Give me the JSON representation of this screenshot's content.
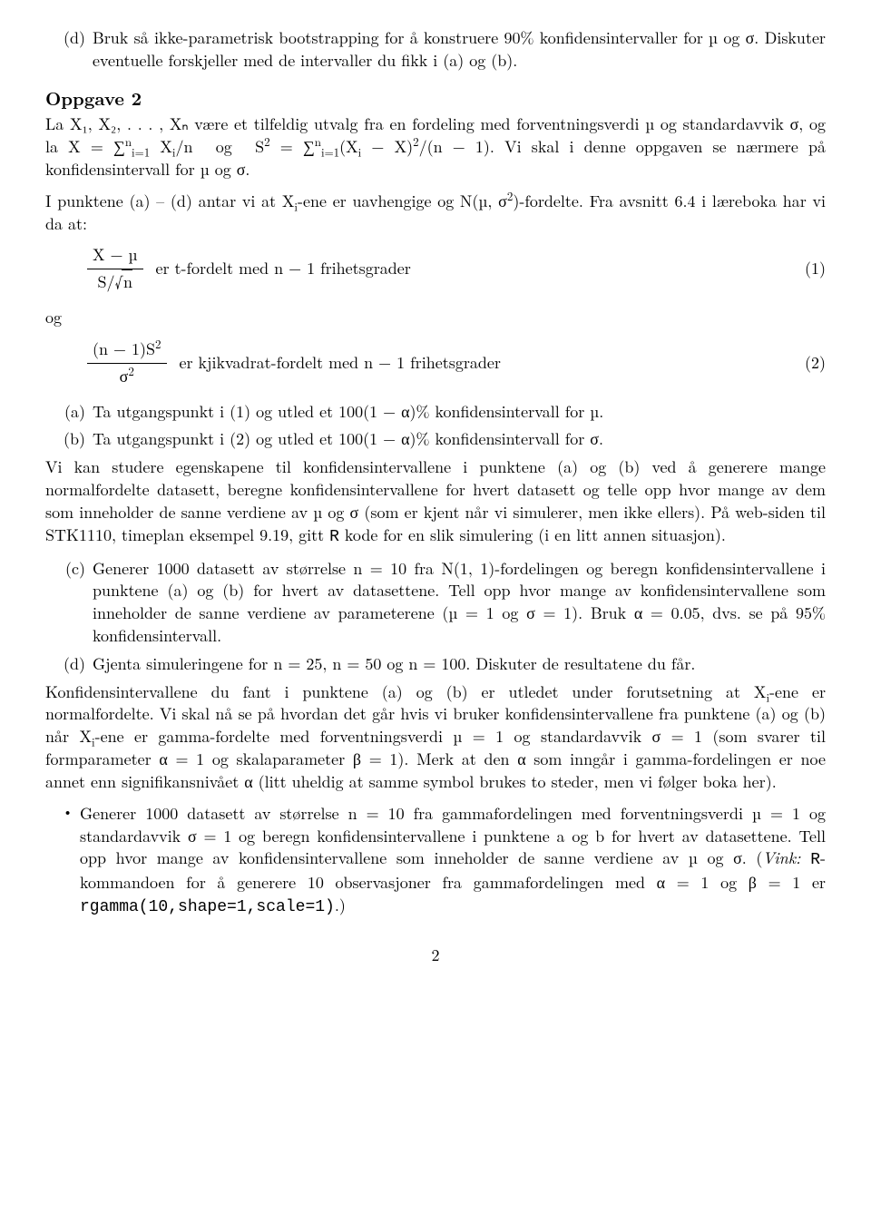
{
  "item_d": {
    "label": "(d)",
    "text": "Bruk så ikke-parametrisk bootstrapping for å konstruere 90% konfidensintervaller for µ og σ. Diskuter eventuelle forskjeller med de intervaller du fikk i (a) og (b)."
  },
  "oppgave2": {
    "heading": "Oppgave 2",
    "para1_before": "La X₁, X₂, . . . , Xₙ være et tilfeldig utvalg fra en fordeling med forventningsverdi µ og standardavvik σ, og la ",
    "para1_eq": "X̄ = ∑ⁿᵢ₌₁ Xᵢ/n og S² = ∑ⁿᵢ₌₁ (Xᵢ − X̄)²/(n − 1).",
    "para1_after": " Vi skal i denne oppgaven se nærmere på konfidensintervall for µ og σ.",
    "para2": "I punktene (a) – (d) antar vi at Xᵢ-ene er uavhengige og N(µ, σ²)-fordelte. Fra avsnitt 6.4 i læreboka har vi da at:",
    "og": "og",
    "eq1": {
      "num": "X̄ − µ",
      "den_pre": "S/",
      "den_root": "n",
      "text": "er t-fordelt med n − 1 frihetsgrader",
      "num_label": "(1)"
    },
    "eq2": {
      "num": "(n − 1)S²",
      "den": "σ²",
      "text": "er kjikvadrat-fordelt med n − 1 frihetsgrader",
      "num_label": "(2)"
    },
    "a": {
      "label": "(a)",
      "text": "Ta utgangspunkt i (1) og utled et 100(1 − α)% konfidensintervall for µ."
    },
    "b": {
      "label": "(b)",
      "text": "Ta utgangspunkt i (2) og utled et 100(1 − α)% konfidensintervall for σ."
    },
    "para3_before": "Vi kan studere egenskapene til konfidensintervallene i punktene (a) og (b) ved å generere mange normalfordelte datasett, beregne konfidensintervallene for hvert datasett og telle opp hvor mange av dem som inneholder de sanne verdiene av µ og σ (som er kjent når vi simulerer, men ikke ellers). På web-siden til STK1110, timeplan eksempel 9.19, gitt ",
    "para3_tt": "R",
    "para3_after": " kode for en slik simulering (i en litt annen situasjon).",
    "c": {
      "label": "(c)",
      "text": "Generer 1000 datasett av størrelse n = 10 fra N(1, 1)-fordelingen og beregn konfidensintervallene i punktene (a) og (b) for hvert av datasettene. Tell opp hvor mange av konfidensintervallene som inneholder de sanne verdiene av parameterene (µ = 1 og σ = 1). Bruk α = 0.05, dvs. se på 95% konfidensintervall."
    },
    "d2": {
      "label": "(d)",
      "text": "Gjenta simuleringene for n = 25, n = 50 og n = 100. Diskuter de resultatene du får."
    },
    "para4": "Konfidensintervallene du fant i punktene (a) og (b) er utledet under forutsetning at Xᵢ-ene er normalfordelte. Vi skal nå se på hvordan det går hvis vi bruker konfidensintervallene fra punktene (a) og (b) når Xᵢ-ene er gamma-fordelte med forventningsverdi µ = 1 og standardavvik σ = 1 (som svarer til formparameter α = 1 og skalaparameter β = 1). Merk at den α som inngår i gamma-fordelingen er noe annet enn signifikansnivået α (litt uheldig at samme symbol brukes to steder, men vi følger boka her).",
    "bullet": {
      "label": "•",
      "text_before": "Generer 1000 datasett av størrelse n = 10 fra gammafordelingen med forventningsverdi µ = 1 og standardavvik σ = 1 og beregn konfidensintervallene i punktene a og b for hvert av datasettene. Tell opp hvor mange av konfidensintervallene som inneholder de sanne verdiene av µ og σ. (",
      "vink": "Vink:",
      "text_mid1": " ",
      "tt1": "R",
      "text_mid2": "-kommandoen for å generere 10 observasjoner fra gammafordelingen med α = 1 og β = 1 er ",
      "tt2": "rgamma(10,shape=1,scale=1)",
      "text_after": ".)"
    }
  },
  "pagenum": "2"
}
